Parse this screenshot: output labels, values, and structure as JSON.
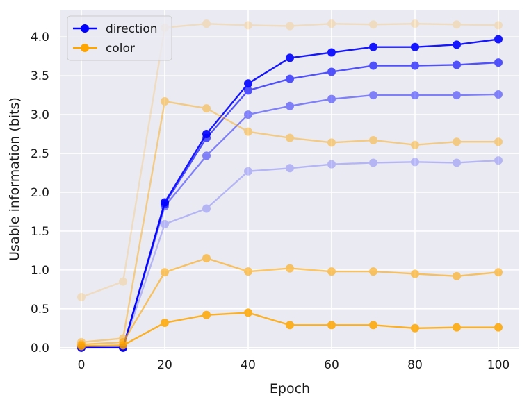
{
  "chart_data": {
    "type": "line",
    "xlabel": "Epoch",
    "ylabel": "Usable information (bits)",
    "xlim": [
      -5,
      105
    ],
    "ylim": [
      -0.02,
      4.35
    ],
    "xticks": [
      0,
      20,
      40,
      60,
      80,
      100
    ],
    "yticks": [
      0.0,
      0.5,
      1.0,
      1.5,
      2.0,
      2.5,
      3.0,
      3.5,
      4.0
    ],
    "ytick_labels": [
      "0.0",
      "0.5",
      "1.0",
      "1.5",
      "2.0",
      "2.5",
      "3.0",
      "3.5",
      "4.0"
    ],
    "grid": true,
    "legend_placement": "top-left",
    "legend": [
      {
        "label": "direction",
        "color": "#0000ff"
      },
      {
        "label": "color",
        "color": "#ffa500"
      }
    ],
    "x": [
      0,
      10,
      20,
      30,
      40,
      50,
      60,
      70,
      80,
      90,
      100
    ],
    "series": [
      {
        "group": "direction",
        "color": "#0000ff",
        "opacity": 0.9,
        "values": [
          0.0,
          0.0,
          1.87,
          2.75,
          3.4,
          3.73,
          3.8,
          3.87,
          3.87,
          3.9,
          3.97
        ]
      },
      {
        "group": "direction",
        "color": "#0000ff",
        "opacity": 0.65,
        "values": [
          0.0,
          0.0,
          1.85,
          2.7,
          3.31,
          3.46,
          3.55,
          3.63,
          3.63,
          3.64,
          3.67
        ]
      },
      {
        "group": "direction",
        "color": "#0000ff",
        "opacity": 0.45,
        "values": [
          0.0,
          0.0,
          1.82,
          2.47,
          3.0,
          3.11,
          3.2,
          3.25,
          3.25,
          3.25,
          3.26
        ]
      },
      {
        "group": "direction",
        "color": "#0000ff",
        "opacity": 0.22,
        "values": [
          0.0,
          0.0,
          1.59,
          1.79,
          2.27,
          2.31,
          2.36,
          2.38,
          2.39,
          2.38,
          2.41
        ]
      },
      {
        "group": "color",
        "color": "#ffa500",
        "opacity": 0.2,
        "values": [
          0.65,
          0.85,
          4.12,
          4.17,
          4.15,
          4.14,
          4.17,
          4.16,
          4.17,
          4.16,
          4.15
        ]
      },
      {
        "group": "color",
        "color": "#ffa500",
        "opacity": 0.45,
        "values": [
          0.07,
          0.12,
          3.17,
          3.08,
          2.78,
          2.7,
          2.64,
          2.67,
          2.61,
          2.65,
          2.65
        ]
      },
      {
        "group": "color",
        "color": "#ffa500",
        "opacity": 0.6,
        "values": [
          0.04,
          0.07,
          0.97,
          1.15,
          0.98,
          1.02,
          0.98,
          0.98,
          0.95,
          0.92,
          0.97
        ]
      },
      {
        "group": "color",
        "color": "#ffa500",
        "opacity": 0.85,
        "values": [
          0.02,
          0.03,
          0.32,
          0.42,
          0.45,
          0.29,
          0.29,
          0.29,
          0.25,
          0.26,
          0.26
        ]
      }
    ]
  }
}
